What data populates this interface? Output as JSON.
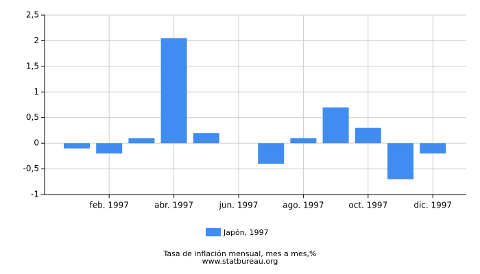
{
  "chart_data": {
    "type": "bar",
    "title": "Tasa de inflación mensual, mes a mes,%",
    "source": "www.statbureau.org",
    "categories": [
      null,
      "feb. 1997",
      null,
      "abr. 1997",
      null,
      "jun. 1997",
      null,
      "ago. 1997",
      null,
      "oct. 1997",
      null,
      "dic. 1997"
    ],
    "series": [
      {
        "name": "Japón, 1997",
        "color": "#418cf0",
        "values": [
          -0.1,
          -0.2,
          0.1,
          2.05,
          0.2,
          0,
          -0.4,
          0.1,
          0.7,
          0.3,
          -0.7,
          -0.2
        ]
      }
    ],
    "ylim": [
      -1,
      2.5
    ],
    "yticks": [
      -1,
      {
        "value": -0.5,
        "label": "-0,5"
      },
      0,
      {
        "value": 0.5,
        "label": "0,5"
      },
      1,
      {
        "value": 1.5,
        "label": "1,5"
      },
      2,
      {
        "value": 2.5,
        "label": "2,5"
      }
    ],
    "grid": true
  }
}
